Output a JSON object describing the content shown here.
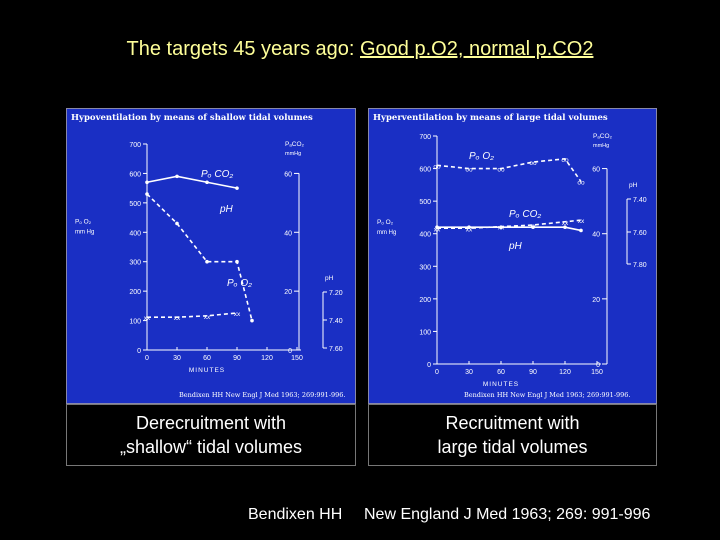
{
  "slide": {
    "title_plain": "The targets 45 years ago: ",
    "title_underlined": "Good p.O2, normal p.CO2",
    "caption_left_line1": "Derecruitment with",
    "caption_left_line2": "„shallow“ tidal volumes",
    "caption_right_line1": "Recruitment with",
    "caption_right_line2": "large tidal volumes",
    "footer_author": "Bendixen HH",
    "footer_journal": "New England J Med 1963; 269: 991-996",
    "colors": {
      "background": "#000000",
      "title": "#ffff99",
      "panel": "#1a2fc4",
      "ink": "#ffffff"
    }
  },
  "chart_data": [
    {
      "type": "line",
      "title": "Hypoventilation by means of shallow tidal volumes",
      "xlabel": "MINUTES",
      "x_ticks": [
        0,
        30,
        60,
        90,
        120,
        150
      ],
      "left_axis": {
        "label_line1": "Pₒ O₂",
        "label_line2": "mm Hg",
        "ylim": [
          0,
          700
        ],
        "ticks": [
          0,
          100,
          200,
          300,
          400,
          500,
          600,
          700
        ]
      },
      "pco2_axis": {
        "label_line1": "PₐCO₂",
        "label_line2": "mmHg",
        "ylim": [
          0,
          70
        ],
        "ticks": [
          0,
          20,
          40,
          60
        ]
      },
      "ph_axis": {
        "label": "pH",
        "ticks": [
          "7.20",
          "7.40",
          "7.60"
        ]
      },
      "series": [
        {
          "name": "Pₒ CO₂",
          "x": [
            0,
            30,
            60,
            90
          ],
          "values": [
            57,
            59,
            57,
            55
          ]
        },
        {
          "name": "pH",
          "x": [
            0,
            30,
            60,
            90
          ],
          "values": [
            7.38,
            7.38,
            7.37,
            7.35
          ],
          "marker": "xx"
        },
        {
          "name": "Pₒ O₂",
          "x": [
            0,
            30,
            60,
            90,
            105
          ],
          "values": [
            530,
            430,
            300,
            300,
            100
          ]
        }
      ],
      "source": "Bendixen HH   New Engl J Med 1963; 269:991-996."
    },
    {
      "type": "line",
      "title": "Hyperventilation by means of large tidal volumes",
      "xlabel": "MINUTES",
      "x_ticks": [
        0,
        30,
        60,
        90,
        120,
        150
      ],
      "left_axis": {
        "label_line1": "Pₒ O₂",
        "label_line2": "mm Hg",
        "ylim": [
          0,
          700
        ],
        "ticks": [
          0,
          100,
          200,
          300,
          400,
          500,
          600,
          700
        ]
      },
      "pco2_axis": {
        "label_line1": "PₐCO₂",
        "label_line2": "mmHg",
        "ylim": [
          0,
          70
        ],
        "ticks": [
          0,
          20,
          40,
          60
        ]
      },
      "ph_axis": {
        "label": "pH",
        "ticks": [
          "7.40",
          "7.60",
          "7.80"
        ]
      },
      "series": [
        {
          "name": "Pₒ O₂",
          "x": [
            0,
            30,
            60,
            90,
            120,
            135
          ],
          "values": [
            610,
            600,
            600,
            620,
            630,
            560
          ],
          "marker": "oo"
        },
        {
          "name": "Pₒ CO₂",
          "x": [
            0,
            30,
            60,
            90,
            120,
            135
          ],
          "values": [
            42,
            42,
            42,
            42,
            42,
            41
          ]
        },
        {
          "name": "pH",
          "x": [
            0,
            30,
            60,
            90,
            120,
            135
          ],
          "values": [
            7.58,
            7.58,
            7.57,
            7.56,
            7.54,
            7.53
          ],
          "marker": "xx"
        }
      ],
      "source": "Bendixen HH   New Engl J Med 1963; 269:991-996."
    }
  ]
}
